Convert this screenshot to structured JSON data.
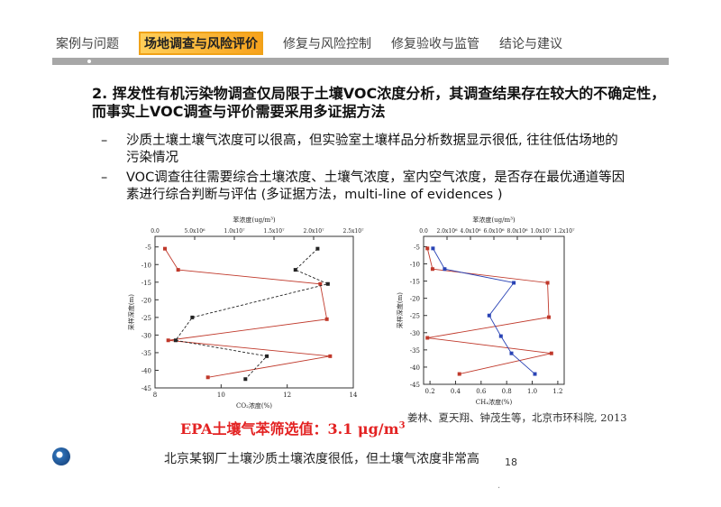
{
  "nav": {
    "tabs": [
      "案例与问题",
      "场地调查与风险评价",
      "修复与风险控制",
      "修复验收与监管",
      "结论与建议"
    ],
    "active_index": 1,
    "accent_color": "#f7a21c",
    "bar_color": "#a7a7a7"
  },
  "title": "2. 挥发性有机污染物调查仅局限于土壤VOC浓度分析，其调查结果存在较大的不确定性，而事实上VOC调查与评价需要采用多证据方法",
  "bullets": [
    "沙质土壤土壤气浓度可以很高，但实验室土壤样品分析数据显示很低, 往往低估场地的污染情况",
    "VOC调查往往需要综合土壤浓度、土壤气浓度，室内空气浓度，是否存在最优通道等因素进行综合判断与评估 (多证据方法，multi-line of evidences )"
  ],
  "epa_text": "EPA土壤气苯筛选值：3.1 μg/m",
  "epa_sup": "3",
  "citation": "姜林、夏天翔、钟茂生等，北京市环科院, 2013",
  "bottom_text": "北京某钢厂土壤沙质土壤浓度很低，但土壤气浓度非常高",
  "page_number": "18",
  "watermark": "·",
  "chart_data": [
    {
      "type": "line",
      "top_xlabel": "苯浓度(ug/m³)",
      "top_ticks": [
        "0.0",
        "5.0x10⁶",
        "1.0x10⁷",
        "1.5x10⁷",
        "2.0x10⁷",
        "2.5x10⁷"
      ],
      "top_xlim": [
        0,
        25000000
      ],
      "xlabel": "CO₂浓度(%)",
      "x_ticks": [
        "8",
        "10",
        "12",
        "14"
      ],
      "xlim": [
        8,
        14
      ],
      "ylabel": "采样深度(m)",
      "y_ticks": [
        "-5",
        "-10",
        "-15",
        "-20",
        "-25",
        "-30",
        "-35",
        "-40",
        "-45"
      ],
      "ylim": [
        -45,
        -2
      ],
      "series": [
        {
          "axis": "bottom",
          "color": "#c0392b",
          "style": "solid",
          "points": [
            [
              8.3,
              -5.5
            ],
            [
              8.7,
              -11.5
            ],
            [
              13.0,
              -15.5
            ],
            [
              13.2,
              -25.5
            ],
            [
              8.4,
              -31.5
            ],
            [
              13.3,
              -36
            ],
            [
              9.6,
              -42
            ]
          ]
        },
        {
          "axis": "top",
          "color": "#222222",
          "style": "dashed",
          "points": [
            [
              20500000,
              -5.5
            ],
            [
              17700000,
              -11.5
            ],
            [
              21800000,
              -15.5
            ],
            [
              4700000,
              -25
            ],
            [
              2600000,
              -31.5
            ],
            [
              14100000,
              -36
            ],
            [
              11400000,
              -42.5
            ]
          ]
        }
      ]
    },
    {
      "type": "line",
      "top_xlabel": "苯浓度(ug/m³)",
      "top_ticks": [
        "0.0",
        "2.0x10⁶",
        "4.0x10⁶",
        "6.0x10⁶",
        "8.0x10⁶",
        "1.0x10⁷",
        "1.2x10⁷"
      ],
      "top_xlim": [
        0,
        12000000
      ],
      "xlabel": "CH₄浓度(%)",
      "x_ticks": [
        "0.2",
        "0.4",
        "0.6",
        "0.8",
        "1.0",
        "1.2"
      ],
      "xlim": [
        0.15,
        1.25
      ],
      "ylabel": "采样深度(m)",
      "y_ticks": [
        "-5",
        "-10",
        "-15",
        "-20",
        "-25",
        "-30",
        "-35",
        "-40",
        "-45"
      ],
      "ylim": [
        -45,
        -2
      ],
      "series": [
        {
          "axis": "bottom",
          "color": "#c0392b",
          "style": "solid",
          "points": [
            [
              0.18,
              -5.5
            ],
            [
              0.22,
              -11.5
            ],
            [
              1.12,
              -15.5
            ],
            [
              1.13,
              -25.5
            ],
            [
              0.18,
              -31.5
            ],
            [
              1.15,
              -36
            ],
            [
              0.43,
              -42
            ]
          ]
        },
        {
          "axis": "top",
          "color": "#2943b5",
          "style": "solid",
          "points": [
            [
              800000,
              -5.5
            ],
            [
              1800000,
              -11.5
            ],
            [
              7700000,
              -15.5
            ],
            [
              5600000,
              -25
            ],
            [
              6600000,
              -31
            ],
            [
              7500000,
              -36
            ],
            [
              9500000,
              -42
            ]
          ]
        }
      ]
    }
  ]
}
